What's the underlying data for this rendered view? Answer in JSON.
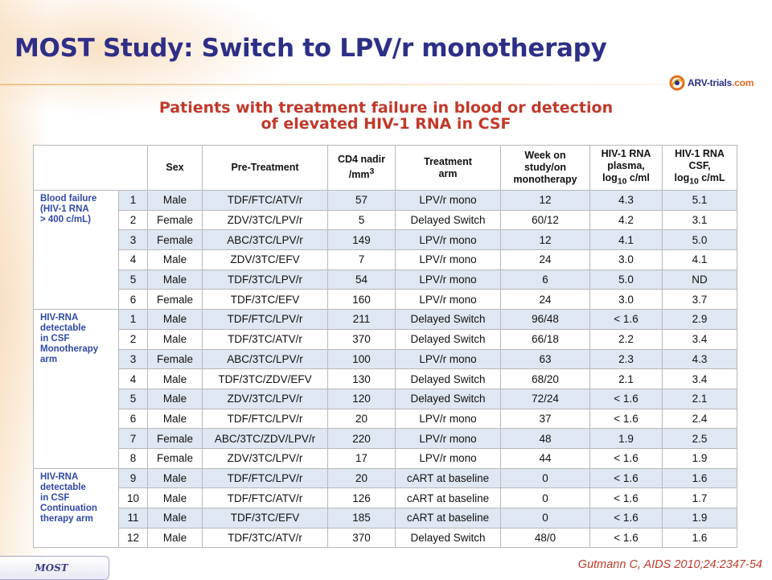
{
  "title": "MOST Study: Switch to LPV/r monotherapy",
  "logo": {
    "brand": "ARV-trials",
    "domain": ".com",
    "icon": "arv-trials-swirl-icon"
  },
  "subtitle": {
    "line1": "Patients with treatment failure in blood or detection",
    "line2": "of elevated HIV-1 RNA in CSF"
  },
  "table": {
    "headers": {
      "group": "",
      "num": "",
      "sex": "Sex",
      "pretreatment": "Pre-Treatment",
      "cd4_line1": "CD4 nadir",
      "cd4_line2": "/mm",
      "cd4_sup": "3",
      "arm_line1": "Treatment",
      "arm_line2": "arm",
      "week_line1": "Week on",
      "week_line2": "study/on",
      "week_line3": "monotherapy",
      "plasma_line1": "HIV-1 RNA",
      "plasma_line2": "plasma,",
      "plasma_line3_a": "log",
      "plasma_line3_sub": "10",
      "plasma_line3_b": " c/ml",
      "csf_line1": "HIV-1 RNA",
      "csf_line2": "CSF,",
      "csf_line3_a": "log",
      "csf_line3_sub": "10",
      "csf_line3_b": " c/mL"
    },
    "groups": [
      {
        "label": "Blood failure\n(HIV-1 RNA\n> 400 c/mL)"
      },
      {
        "label": "HIV-RNA\ndetectable\nin CSF\nMonotherapy\narm"
      },
      {
        "label": "HIV-RNA\ndetectable\nin CSF\nContinuation\ntherapy arm"
      }
    ],
    "rows": [
      [
        "1",
        "Male",
        "TDF/FTC/ATV/r",
        "57",
        "LPV/r mono",
        "12",
        "4.3",
        "5.1"
      ],
      [
        "2",
        "Female",
        "ZDV/3TC/LPV/r",
        "5",
        "Delayed Switch",
        "60/12",
        "4.2",
        "3.1"
      ],
      [
        "3",
        "Female",
        "ABC/3TC/LPV/r",
        "149",
        "LPV/r mono",
        "12",
        "4.1",
        "5.0"
      ],
      [
        "4",
        "Male",
        "ZDV/3TC/EFV",
        "7",
        "LPV/r mono",
        "24",
        "3.0",
        "4.1"
      ],
      [
        "5",
        "Male",
        "TDF/3TC/LPV/r",
        "54",
        "LPV/r mono",
        "6",
        "5.0",
        "ND"
      ],
      [
        "6",
        "Female",
        "TDF/3TC/EFV",
        "160",
        "LPV/r mono",
        "24",
        "3.0",
        "3.7"
      ],
      [
        "1",
        "Male",
        "TDF/FTC/LPV/r",
        "211",
        "Delayed Switch",
        "96/48",
        "< 1.6",
        "2.9"
      ],
      [
        "2",
        "Male",
        "TDF/3TC/ATV/r",
        "370",
        "Delayed Switch",
        "66/18",
        "2.2",
        "3.4"
      ],
      [
        "3",
        "Female",
        "ABC/3TC/LPV/r",
        "100",
        "LPV/r mono",
        "63",
        "2.3",
        "4.3"
      ],
      [
        "4",
        "Male",
        "TDF/3TC/ZDV/EFV",
        "130",
        "Delayed Switch",
        "68/20",
        "2.1",
        "3.4"
      ],
      [
        "5",
        "Male",
        "ZDV/3TC/LPV/r",
        "120",
        "Delayed Switch",
        "72/24",
        "< 1.6",
        "2.1"
      ],
      [
        "6",
        "Male",
        "TDF/FTC/LPV/r",
        "20",
        "LPV/r mono",
        "37",
        "< 1.6",
        "2.4"
      ],
      [
        "7",
        "Female",
        "ABC/3TC/ZDV/LPV/r",
        "220",
        "LPV/r mono",
        "48",
        "1.9",
        "2.5"
      ],
      [
        "8",
        "Female",
        "ZDV/3TC/LPV/r",
        "17",
        "LPV/r mono",
        "44",
        "< 1.6",
        "1.9"
      ],
      [
        "9",
        "Male",
        "TDF/FTC/LPV/r",
        "20",
        "cART at baseline",
        "0",
        "< 1.6",
        "1.6"
      ],
      [
        "10",
        "Male",
        "TDF/FTC/ATV/r",
        "126",
        "cART at baseline",
        "0",
        "< 1.6",
        "1.7"
      ],
      [
        "11",
        "Male",
        "TDF/3TC/EFV",
        "185",
        "cART at baseline",
        "0",
        "< 1.6",
        "1.9"
      ],
      [
        "12",
        "Male",
        "TDF/3TC/ATV/r",
        "370",
        "Delayed Switch",
        "48/0",
        "< 1.6",
        "1.6"
      ]
    ]
  },
  "footer": {
    "tab_label": "MOST",
    "citation": "Gutmann C, AIDS 2010;24:2347-54"
  },
  "colors": {
    "title": "#2e2f86",
    "subtitle": "#c0392b",
    "group_label": "#2e49a8",
    "row_shade": "#dfe7f2",
    "citation": "#c0392b"
  }
}
